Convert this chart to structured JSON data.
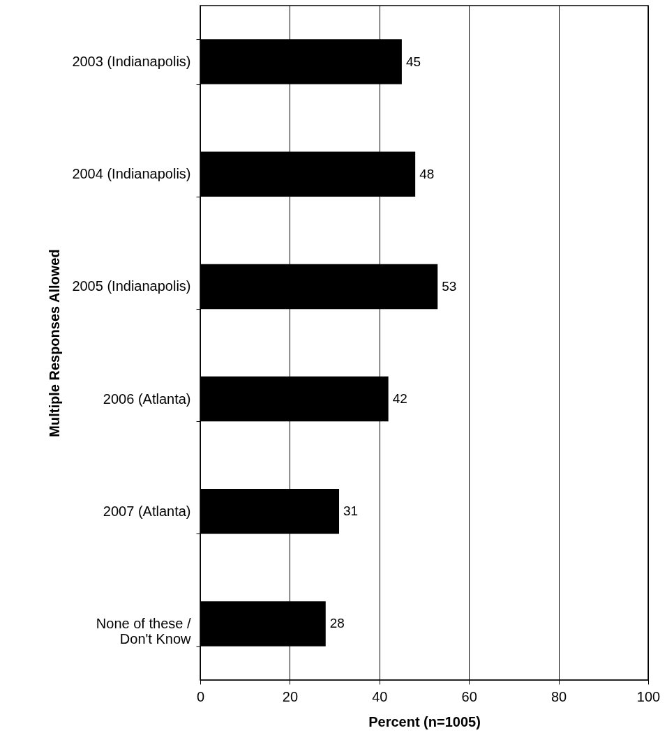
{
  "chart_data": {
    "type": "bar",
    "orientation": "horizontal",
    "xlabel": "Percent (n=1005)",
    "ylabel": "Multiple Responses Allowed",
    "categories": [
      "2003 (Indianapolis)",
      "2004 (Indianapolis)",
      "2005 (Indianapolis)",
      "2006 (Atlanta)",
      "2007 (Atlanta)",
      "None of these / Don't Know"
    ],
    "values": [
      45,
      48,
      53,
      42,
      31,
      28
    ],
    "color": "#000000",
    "xlim": [
      0,
      100
    ],
    "xticks": [
      0,
      20,
      40,
      60,
      80,
      100
    ],
    "grid": "x",
    "data_labels": true
  }
}
